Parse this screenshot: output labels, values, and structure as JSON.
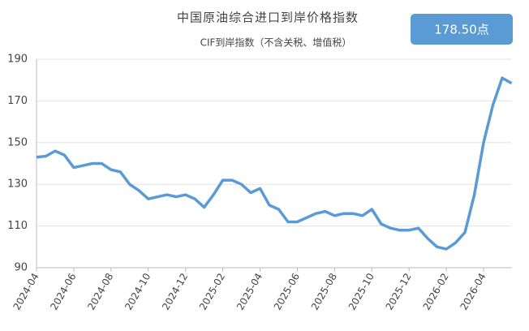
{
  "chart_data": {
    "type": "line",
    "title": "中国原油综合进口到岸价格指数",
    "subtitle": "CIF到岸指数（不含关税、增值税）",
    "badge": "178.50点",
    "categories": [
      "2024-04",
      null,
      null,
      null,
      "2024-06",
      null,
      null,
      null,
      "2024-08",
      null,
      null,
      null,
      "2024-10",
      null,
      null,
      null,
      "2024-12",
      null,
      null,
      null,
      "2025-02",
      null,
      null,
      null,
      "2025-04",
      null,
      null,
      null,
      "2025-06",
      null,
      null,
      null,
      "2025-08",
      null,
      null,
      null,
      "2025-10",
      null,
      null,
      null,
      "2025-12",
      null,
      null,
      null,
      "2026-02",
      null,
      null,
      null,
      "2026-04",
      null,
      null,
      null
    ],
    "series": [
      {
        "color": "#5b9bd5",
        "values": [
          143,
          143.5,
          146,
          144,
          138,
          139,
          140,
          140,
          137,
          136,
          130,
          127,
          123,
          124,
          125,
          124,
          125,
          123,
          119,
          125,
          132,
          132,
          130,
          126,
          128,
          120,
          118,
          112,
          112,
          114,
          116,
          117,
          115,
          116,
          116,
          115,
          118,
          111,
          109,
          108,
          108,
          109,
          104,
          100,
          99,
          102,
          107,
          125,
          150,
          168,
          181,
          178.5
        ]
      }
    ],
    "ylim": [
      90,
      190
    ],
    "yticks": [
      90,
      110,
      130,
      150,
      170,
      190
    ],
    "grid": true
  }
}
